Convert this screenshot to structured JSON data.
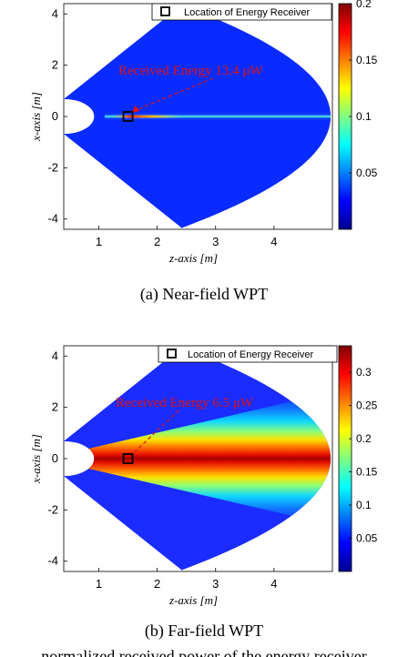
{
  "chart_data": [
    {
      "type": "heatmap",
      "caption": "(a) Near-field WPT",
      "xlabel": "z-axis [m]",
      "ylabel": "x-axis [m]",
      "xlim": [
        0.4,
        5.0
      ],
      "ylim": [
        -4.4,
        4.4
      ],
      "xticks": [
        1,
        2,
        3,
        4
      ],
      "yticks": [
        -4,
        -2,
        0,
        2,
        4
      ],
      "clim": [
        0.0,
        0.2
      ],
      "colorbar_ticks": [
        0.05,
        0.1,
        0.15,
        0.2
      ],
      "colormap": "jet",
      "legend": {
        "label": "Location of Energy Receiver",
        "placement": "top-right"
      },
      "receiver": {
        "z": 1.5,
        "x": 0.0
      },
      "annotation": {
        "text": "Received Energy 13.4 μW",
        "points_to": {
          "z": 1.5,
          "x": 0.0
        }
      }
    },
    {
      "type": "heatmap",
      "caption": "(b) Far-field WPT",
      "xlabel": "z-axis [m]",
      "ylabel": "x-axis [m]",
      "xlim": [
        0.4,
        5.0
      ],
      "ylim": [
        -4.4,
        4.4
      ],
      "xticks": [
        1,
        2,
        3,
        4
      ],
      "yticks": [
        -4,
        -2,
        0,
        2,
        4
      ],
      "clim": [
        0.0,
        0.34
      ],
      "colorbar_ticks": [
        0.05,
        0.1,
        0.15,
        0.2,
        0.25,
        0.3
      ],
      "colormap": "jet",
      "legend": {
        "label": "Location of Energy Receiver",
        "placement": "top-right"
      },
      "receiver": {
        "z": 1.5,
        "x": 0.0
      },
      "annotation": {
        "text": "Received Energy 6.5 μW",
        "points_to": {
          "z": 1.5,
          "x": 0.0
        }
      }
    }
  ],
  "figure_caption_fragment": "normalized received power of the energy receiver"
}
